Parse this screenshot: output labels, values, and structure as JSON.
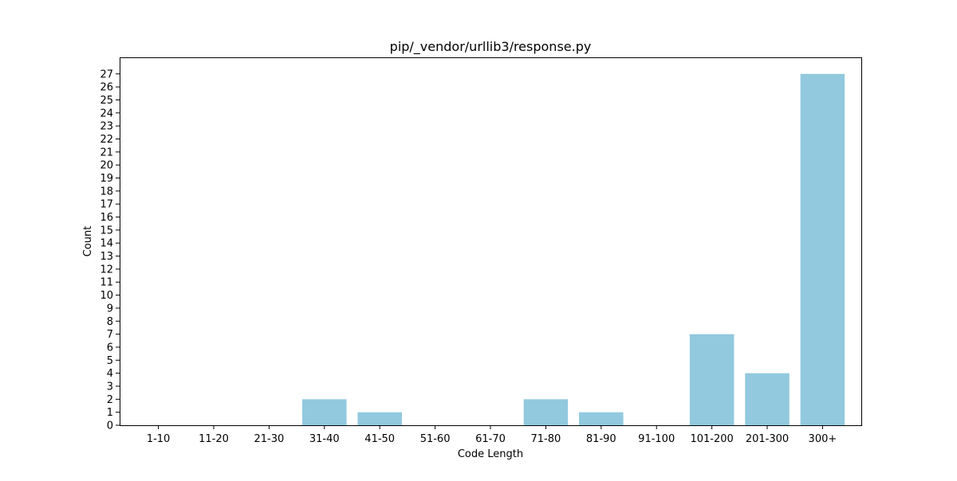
{
  "chart_data": {
    "type": "bar",
    "title": "pip/_vendor/urllib3/response.py",
    "xlabel": "Code Length",
    "ylabel": "Count",
    "categories": [
      "1-10",
      "11-20",
      "21-30",
      "31-40",
      "41-50",
      "51-60",
      "61-70",
      "71-80",
      "81-90",
      "91-100",
      "101-200",
      "201-300",
      "300+"
    ],
    "values": [
      0,
      0,
      0,
      2,
      1,
      0,
      0,
      2,
      1,
      0,
      7,
      4,
      27
    ],
    "ylim": [
      0,
      27.0
    ],
    "yticks": [
      0,
      1,
      2,
      3,
      4,
      5,
      6,
      7,
      8,
      9,
      10,
      11,
      12,
      13,
      14,
      15,
      16,
      17,
      18,
      19,
      20,
      21,
      22,
      23,
      24,
      25,
      26,
      27
    ],
    "bar_color": "#92c9de",
    "grid": false,
    "legend": "none"
  }
}
